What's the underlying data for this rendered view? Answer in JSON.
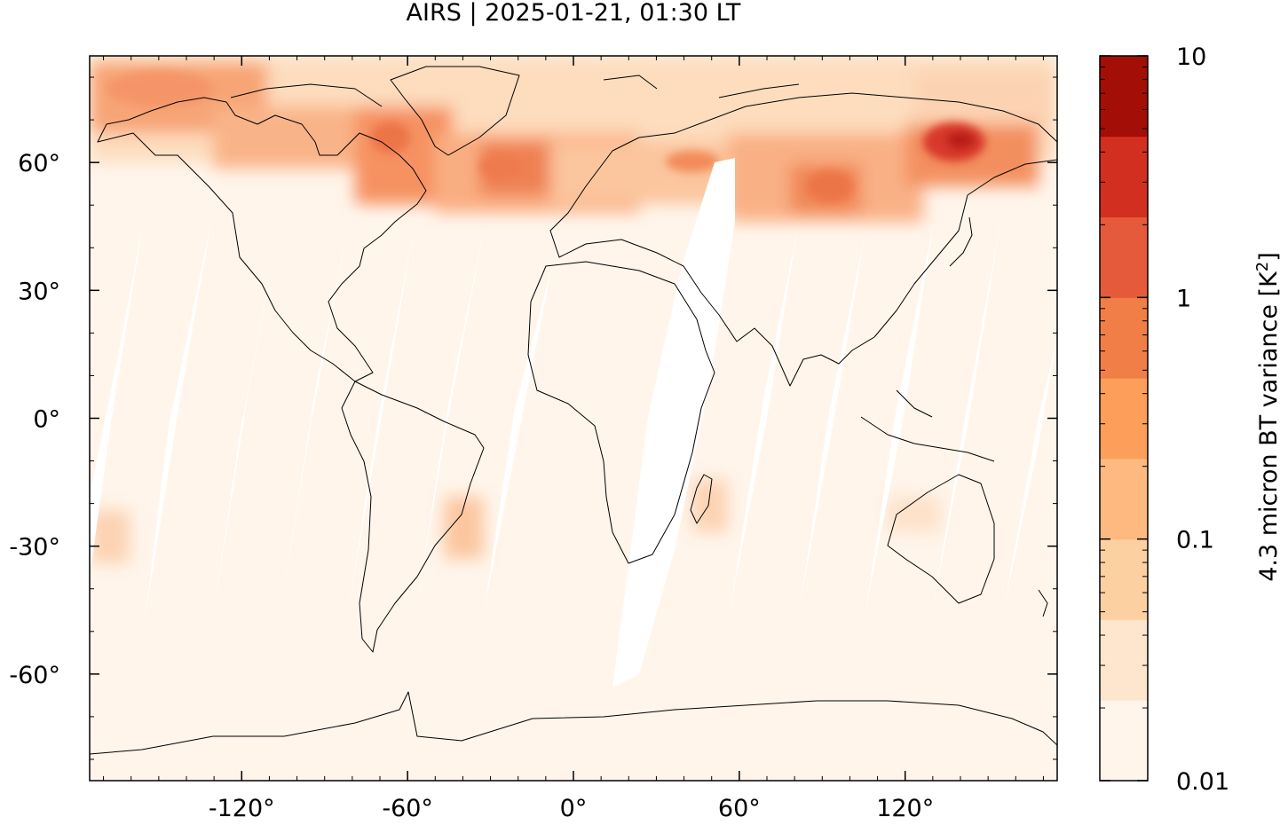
{
  "title": "AIRS | 2025-01-21, 01:30 LT",
  "map": {
    "x_ticks": [
      {
        "value": -120,
        "label": "-120°"
      },
      {
        "value": -60,
        "label": "-60°"
      },
      {
        "value": 0,
        "label": "0°"
      },
      {
        "value": 60,
        "label": "60°"
      },
      {
        "value": 120,
        "label": "120°"
      }
    ],
    "y_ticks": [
      {
        "value": 60,
        "label": "60°"
      },
      {
        "value": 30,
        "label": "30°"
      },
      {
        "value": 0,
        "label": "0°"
      },
      {
        "value": -30,
        "label": "-30°"
      },
      {
        "value": -60,
        "label": "-60°"
      }
    ],
    "lon_range": [
      -175,
      175
    ],
    "lat_range": [
      -85,
      85
    ],
    "background_color": "#fff5eb",
    "coastline_color": "#000000"
  },
  "colorbar": {
    "label_main": "4.3 micron BT variance [K",
    "label_sup": "2",
    "label_end": "]",
    "scale": "log",
    "tick_labels": [
      {
        "value": 10,
        "label": "10"
      },
      {
        "value": 1,
        "label": "1"
      },
      {
        "value": 0.1,
        "label": "0.1"
      },
      {
        "value": 0.01,
        "label": "0.01"
      }
    ],
    "bin_colors": [
      "#fff5eb",
      "#fee6ce",
      "#fdd0a2",
      "#fdb97f",
      "#fd9e5b",
      "#f27e47",
      "#e55a3a",
      "#d32f20",
      "#a30f06"
    ]
  }
}
